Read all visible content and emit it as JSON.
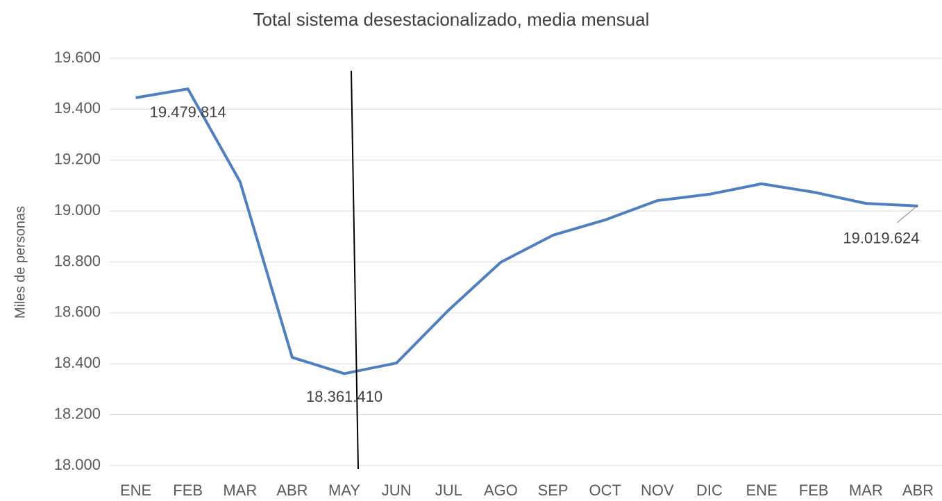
{
  "chart_data": {
    "type": "line",
    "title": "Total sistema desestacionalizado, media mensual",
    "y_label": "Miles de personas",
    "categories": [
      "ENE",
      "FEB",
      "MAR",
      "ABR",
      "MAY",
      "JUN",
      "JUL",
      "AGO",
      "SEP",
      "OCT",
      "NOV",
      "DIC",
      "ENE",
      "FEB",
      "MAR",
      "ABR"
    ],
    "series": [
      {
        "name": "Total sistema",
        "color": "#4f7fc0",
        "values": [
          19445,
          19479.814,
          19115,
          18425,
          18361.41,
          18403,
          18611,
          18799,
          18905,
          18965,
          19041,
          19066,
          19107,
          19074,
          19030,
          19019.624
        ],
        "value_labels": [
          null,
          "19.479.814",
          null,
          null,
          "18.361.410",
          null,
          null,
          null,
          null,
          null,
          null,
          null,
          null,
          null,
          null,
          "19.019.624"
        ]
      }
    ],
    "ylim": [
      18000,
      19600
    ],
    "yticks": [
      {
        "value": 18000,
        "label": "18.000"
      },
      {
        "value": 18200,
        "label": "18.200"
      },
      {
        "value": 18400,
        "label": "18.400"
      },
      {
        "value": 18600,
        "label": "18.600"
      },
      {
        "value": 18800,
        "label": "18.800"
      },
      {
        "value": 19000,
        "label": "19.000"
      },
      {
        "value": 19200,
        "label": "19.200"
      },
      {
        "value": 19400,
        "label": "19.400"
      },
      {
        "value": 19600,
        "label": "19.600"
      }
    ],
    "grid": true
  }
}
